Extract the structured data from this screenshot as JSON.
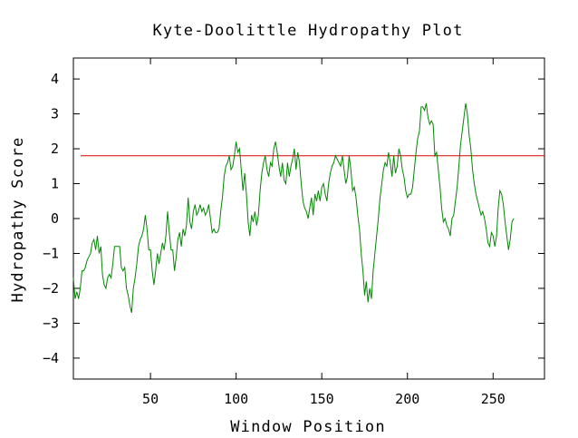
{
  "chart_data": {
    "type": "line",
    "title": "Kyte-Doolittle Hydropathy Plot",
    "xlabel": "Window Position",
    "ylabel": "Hydropathy Score",
    "xlim": [
      5,
      280
    ],
    "ylim": [
      -4.6,
      4.6
    ],
    "xticks": [
      50,
      100,
      150,
      200,
      250
    ],
    "xtick_labels": [
      "50",
      "100",
      "150",
      "200",
      "250"
    ],
    "yticks": [
      4,
      3,
      2,
      1,
      0,
      -1,
      -2,
      -3,
      -4
    ],
    "ytick_labels": [
      "4",
      "3",
      "2",
      "1",
      "0",
      "−1",
      "−2",
      "−3",
      "−4"
    ],
    "grid": false,
    "threshold": {
      "value": 1.8,
      "color": "#dd0000"
    },
    "series": [
      {
        "color": "#008800",
        "points": [
          [
            5,
            -1.7
          ],
          [
            6,
            -2.3
          ],
          [
            7,
            -2.1
          ],
          [
            8,
            -2.3
          ],
          [
            9,
            -2.0
          ],
          [
            10,
            -1.5
          ],
          [
            11,
            -1.5
          ],
          [
            12,
            -1.4
          ],
          [
            13,
            -1.2
          ],
          [
            14,
            -1.1
          ],
          [
            15,
            -1.0
          ],
          [
            16,
            -0.7
          ],
          [
            17,
            -0.6
          ],
          [
            18,
            -0.9
          ],
          [
            19,
            -0.5
          ],
          [
            20,
            -1.0
          ],
          [
            21,
            -0.8
          ],
          [
            22,
            -1.6
          ],
          [
            23,
            -1.9
          ],
          [
            24,
            -2.0
          ],
          [
            25,
            -1.7
          ],
          [
            26,
            -1.6
          ],
          [
            27,
            -1.7
          ],
          [
            28,
            -1.3
          ],
          [
            29,
            -0.8
          ],
          [
            30,
            -0.8
          ],
          [
            31,
            -0.8
          ],
          [
            32,
            -0.8
          ],
          [
            33,
            -1.4
          ],
          [
            34,
            -1.5
          ],
          [
            35,
            -1.4
          ],
          [
            36,
            -2.0
          ],
          [
            37,
            -2.2
          ],
          [
            38,
            -2.5
          ],
          [
            39,
            -2.7
          ],
          [
            40,
            -2.0
          ],
          [
            41,
            -1.7
          ],
          [
            42,
            -1.3
          ],
          [
            43,
            -0.8
          ],
          [
            44,
            -0.6
          ],
          [
            45,
            -0.5
          ],
          [
            46,
            -0.3
          ],
          [
            47,
            0.1
          ],
          [
            48,
            -0.3
          ],
          [
            49,
            -0.9
          ],
          [
            50,
            -0.9
          ],
          [
            51,
            -1.5
          ],
          [
            52,
            -1.9
          ],
          [
            53,
            -1.5
          ],
          [
            54,
            -1.0
          ],
          [
            55,
            -1.3
          ],
          [
            56,
            -1.0
          ],
          [
            57,
            -0.7
          ],
          [
            58,
            -0.9
          ],
          [
            59,
            -0.5
          ],
          [
            60,
            0.2
          ],
          [
            61,
            -0.4
          ],
          [
            62,
            -0.9
          ],
          [
            63,
            -0.9
          ],
          [
            64,
            -1.5
          ],
          [
            65,
            -1.1
          ],
          [
            66,
            -0.6
          ],
          [
            67,
            -0.4
          ],
          [
            68,
            -0.8
          ],
          [
            69,
            -0.3
          ],
          [
            70,
            -0.5
          ],
          [
            71,
            -0.2
          ],
          [
            72,
            0.6
          ],
          [
            73,
            -0.1
          ],
          [
            74,
            -0.3
          ],
          [
            75,
            0.2
          ],
          [
            76,
            0.4
          ],
          [
            77,
            0.1
          ],
          [
            78,
            0.2
          ],
          [
            79,
            0.4
          ],
          [
            80,
            0.2
          ],
          [
            81,
            0.3
          ],
          [
            82,
            0.1
          ],
          [
            83,
            0.2
          ],
          [
            84,
            0.4
          ],
          [
            85,
            0.0
          ],
          [
            86,
            -0.4
          ],
          [
            87,
            -0.3
          ],
          [
            88,
            -0.4
          ],
          [
            89,
            -0.4
          ],
          [
            90,
            -0.3
          ],
          [
            91,
            0.2
          ],
          [
            92,
            0.6
          ],
          [
            93,
            1.2
          ],
          [
            94,
            1.5
          ],
          [
            95,
            1.6
          ],
          [
            96,
            1.8
          ],
          [
            97,
            1.4
          ],
          [
            98,
            1.5
          ],
          [
            99,
            1.8
          ],
          [
            100,
            2.2
          ],
          [
            101,
            1.9
          ],
          [
            102,
            2.0
          ],
          [
            103,
            1.4
          ],
          [
            104,
            0.8
          ],
          [
            105,
            1.3
          ],
          [
            106,
            0.7
          ],
          [
            107,
            -0.1
          ],
          [
            108,
            -0.5
          ],
          [
            109,
            0.1
          ],
          [
            110,
            -0.1
          ],
          [
            111,
            0.2
          ],
          [
            112,
            -0.2
          ],
          [
            113,
            0.1
          ],
          [
            114,
            0.8
          ],
          [
            115,
            1.3
          ],
          [
            116,
            1.6
          ],
          [
            117,
            1.8
          ],
          [
            118,
            1.4
          ],
          [
            119,
            1.2
          ],
          [
            120,
            1.6
          ],
          [
            121,
            1.5
          ],
          [
            122,
            2.0
          ],
          [
            123,
            2.2
          ],
          [
            124,
            1.9
          ],
          [
            125,
            1.5
          ],
          [
            126,
            1.2
          ],
          [
            127,
            1.6
          ],
          [
            128,
            1.1
          ],
          [
            129,
            1.0
          ],
          [
            130,
            1.6
          ],
          [
            131,
            1.2
          ],
          [
            132,
            1.5
          ],
          [
            133,
            1.7
          ],
          [
            134,
            2.0
          ],
          [
            135,
            1.4
          ],
          [
            136,
            1.9
          ],
          [
            137,
            1.6
          ],
          [
            138,
            1.0
          ],
          [
            139,
            0.5
          ],
          [
            140,
            0.3
          ],
          [
            141,
            0.2
          ],
          [
            142,
            0.0
          ],
          [
            143,
            0.3
          ],
          [
            144,
            0.6
          ],
          [
            145,
            0.1
          ],
          [
            146,
            0.7
          ],
          [
            147,
            0.5
          ],
          [
            148,
            0.8
          ],
          [
            149,
            0.5
          ],
          [
            150,
            0.9
          ],
          [
            151,
            1.0
          ],
          [
            152,
            0.7
          ],
          [
            153,
            0.5
          ],
          [
            154,
            1.0
          ],
          [
            155,
            1.3
          ],
          [
            156,
            1.5
          ],
          [
            157,
            1.6
          ],
          [
            158,
            1.8
          ],
          [
            159,
            1.7
          ],
          [
            160,
            1.6
          ],
          [
            161,
            1.5
          ],
          [
            162,
            1.8
          ],
          [
            163,
            1.4
          ],
          [
            164,
            1.0
          ],
          [
            165,
            1.2
          ],
          [
            166,
            1.8
          ],
          [
            167,
            1.4
          ],
          [
            168,
            0.8
          ],
          [
            169,
            0.9
          ],
          [
            170,
            0.6
          ],
          [
            171,
            0.1
          ],
          [
            172,
            -0.3
          ],
          [
            173,
            -1.0
          ],
          [
            174,
            -1.5
          ],
          [
            175,
            -2.2
          ],
          [
            176,
            -1.8
          ],
          [
            177,
            -2.4
          ],
          [
            178,
            -2.0
          ],
          [
            179,
            -2.3
          ],
          [
            180,
            -1.5
          ],
          [
            181,
            -1.0
          ],
          [
            182,
            -0.5
          ],
          [
            183,
            0.0
          ],
          [
            184,
            0.6
          ],
          [
            185,
            1.0
          ],
          [
            186,
            1.4
          ],
          [
            187,
            1.6
          ],
          [
            188,
            1.5
          ],
          [
            189,
            1.9
          ],
          [
            190,
            1.6
          ],
          [
            191,
            1.2
          ],
          [
            192,
            1.8
          ],
          [
            193,
            1.3
          ],
          [
            194,
            1.5
          ],
          [
            195,
            2.0
          ],
          [
            196,
            1.8
          ],
          [
            197,
            1.4
          ],
          [
            198,
            1.2
          ],
          [
            199,
            0.8
          ],
          [
            200,
            0.6
          ],
          [
            201,
            0.7
          ],
          [
            202,
            0.7
          ],
          [
            203,
            0.9
          ],
          [
            204,
            1.4
          ],
          [
            205,
            1.9
          ],
          [
            206,
            2.3
          ],
          [
            207,
            2.5
          ],
          [
            208,
            3.2
          ],
          [
            209,
            3.2
          ],
          [
            210,
            3.1
          ],
          [
            211,
            3.3
          ],
          [
            212,
            2.9
          ],
          [
            213,
            2.7
          ],
          [
            214,
            2.8
          ],
          [
            215,
            2.7
          ],
          [
            216,
            1.8
          ],
          [
            217,
            1.9
          ],
          [
            218,
            1.4
          ],
          [
            219,
            0.9
          ],
          [
            220,
            0.3
          ],
          [
            221,
            -0.1
          ],
          [
            222,
            0.0
          ],
          [
            223,
            -0.2
          ],
          [
            224,
            -0.3
          ],
          [
            225,
            -0.5
          ],
          [
            226,
            0.0
          ],
          [
            227,
            0.1
          ],
          [
            228,
            0.5
          ],
          [
            229,
            0.9
          ],
          [
            230,
            1.5
          ],
          [
            231,
            2.1
          ],
          [
            232,
            2.5
          ],
          [
            233,
            2.9
          ],
          [
            234,
            3.3
          ],
          [
            235,
            3.0
          ],
          [
            236,
            2.4
          ],
          [
            237,
            2.0
          ],
          [
            238,
            1.4
          ],
          [
            239,
            1.0
          ],
          [
            240,
            0.7
          ],
          [
            241,
            0.5
          ],
          [
            242,
            0.3
          ],
          [
            243,
            0.1
          ],
          [
            244,
            0.2
          ],
          [
            245,
            0.0
          ],
          [
            246,
            -0.3
          ],
          [
            247,
            -0.7
          ],
          [
            248,
            -0.8
          ],
          [
            249,
            -0.4
          ],
          [
            250,
            -0.5
          ],
          [
            251,
            -0.8
          ],
          [
            252,
            -0.5
          ],
          [
            253,
            0.3
          ],
          [
            254,
            0.8
          ],
          [
            255,
            0.7
          ],
          [
            256,
            0.4
          ],
          [
            257,
            -0.1
          ],
          [
            258,
            -0.5
          ],
          [
            259,
            -0.9
          ],
          [
            260,
            -0.6
          ],
          [
            261,
            -0.1
          ],
          [
            262,
            0.0
          ]
        ]
      }
    ]
  }
}
